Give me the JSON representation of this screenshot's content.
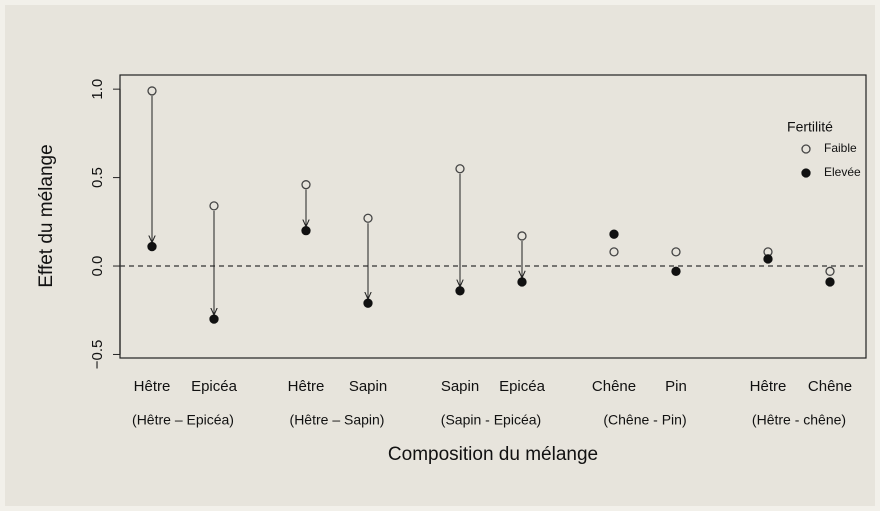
{
  "chart_data": {
    "type": "dot",
    "x_label": "Composition du mélange",
    "y_label": "Effet du mélange",
    "categories": [
      "Hêtre",
      "Epicéa",
      "Hêtre",
      "Sapin",
      "Sapin",
      "Epicéa",
      "Chêne",
      "Pin",
      "Hêtre",
      "Chêne"
    ],
    "groups": [
      "(Hêtre – Epicéa)",
      "(Hêtre – Sapin)",
      "(Sapin - Epicéa)",
      "(Chêne - Pin)",
      "(Hêtre - chêne)"
    ],
    "legend_title": "Fertilité",
    "series": [
      {
        "name": "Faible",
        "color": "#444444",
        "filled": false,
        "values": [
          0.99,
          0.34,
          0.46,
          0.27,
          0.55,
          0.17,
          0.08,
          0.08,
          0.08,
          -0.03
        ]
      },
      {
        "name": "Elevée",
        "color": "#111111",
        "filled": true,
        "values": [
          0.11,
          -0.3,
          0.2,
          -0.21,
          -0.14,
          -0.09,
          0.18,
          -0.03,
          0.04,
          -0.09
        ]
      }
    ],
    "arrows": [
      true,
      true,
      true,
      true,
      true,
      true,
      false,
      false,
      false,
      false
    ],
    "hline": 0,
    "ylim": [
      -0.52,
      1.08
    ],
    "yticks": [
      {
        "value": -0.5,
        "label": "−0.5"
      },
      {
        "value": 0,
        "label": "0.0"
      },
      {
        "value": 0.5,
        "label": "0.5"
      },
      {
        "value": 1,
        "label": "1.0"
      }
    ],
    "legend": "top-right"
  }
}
